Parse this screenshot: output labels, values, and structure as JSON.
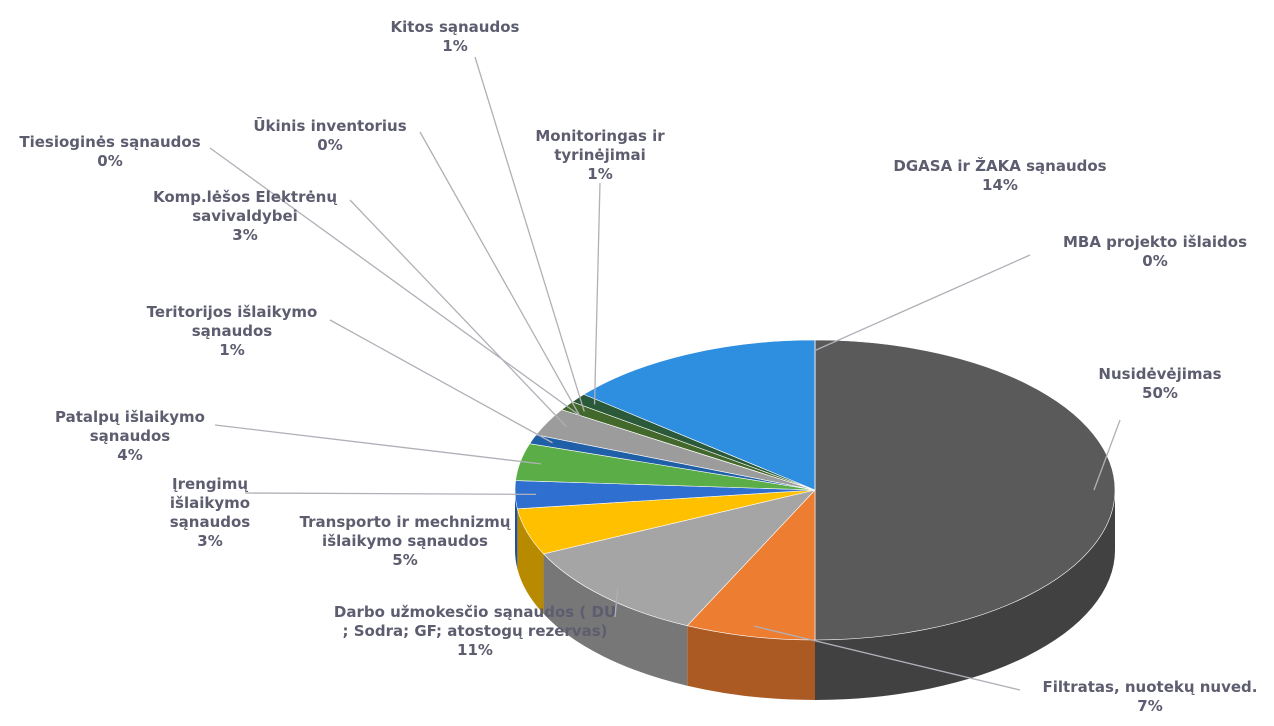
{
  "chart_data": {
    "type": "pie3d",
    "categories": [
      "Nusidėvėjimas",
      "Filtratas, nuotekų nuved.",
      "Darbo užmokesčio sąnaudos ( DU ; Sodra; GF; atostogų rezervas)",
      "Transporto ir mechnizmų išlaikymo sąnaudos",
      "Įrengimų išlaikymo sąnaudos",
      "Patalpų išlaikymo sąnaudos",
      "Teritorijos išlaikymo sąnaudos",
      "Komp.lėšos Elektrėnų savivaldybei",
      "Tiesioginės sąnaudos",
      "Ūkinis inventorius",
      "Kitos sąnaudos",
      "Monitoringas ir tyrinėjimai",
      "DGASA ir ŽAKA sąnaudos",
      "MBA projekto išlaidos"
    ],
    "values": [
      50,
      7,
      11,
      5,
      3,
      4,
      1,
      3,
      0,
      0,
      1,
      1,
      14,
      0
    ],
    "value_labels": [
      "50%",
      "7%",
      "11%",
      "5%",
      "3%",
      "4%",
      "1%",
      "3%",
      "0%",
      "0%",
      "1%",
      "1%",
      "14%",
      "0%"
    ],
    "colors": [
      "#5a5a5a",
      "#ed7d31",
      "#a5a5a5",
      "#ffc000",
      "#2f6fd0",
      "#5bad47",
      "#1f5fa8",
      "#9c9c9c",
      "#997300",
      "#264478",
      "#43682b",
      "#2a5a3a",
      "#2e8ee0",
      "#f4a070"
    ]
  }
}
